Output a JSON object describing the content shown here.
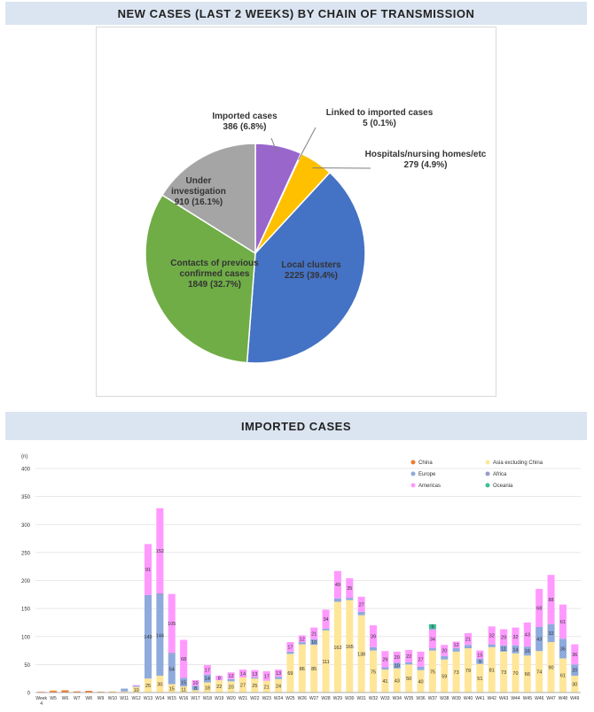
{
  "pie_section": {
    "title": "NEW CASES (LAST 2 WEEKS) BY CHAIN OF TRANSMISSION"
  },
  "bar_section": {
    "title": "IMPORTED CASES"
  },
  "chart_data": [
    {
      "type": "pie",
      "title": "NEW CASES (LAST 2 WEEKS) BY CHAIN OF TRANSMISSION",
      "slices": [
        {
          "label": "Imported cases",
          "value": 386,
          "text": "386 (6.8%)",
          "color": "#9966cc"
        },
        {
          "label": "Linked to imported cases",
          "value": 5,
          "text": "5 (0.1%)",
          "color": "#7f7f7f"
        },
        {
          "label": "Hospitals/nursing homes/etc",
          "value": 279,
          "text": "279 (4.9%)",
          "color": "#ffc000"
        },
        {
          "label": "Local clusters",
          "value": 2225,
          "text": "2225 (39.4%)",
          "color": "#4472c4"
        },
        {
          "label": "Contacts of previous confirmed cases",
          "value": 1849,
          "text": "1849 (32.7%)",
          "color": "#70ad47"
        },
        {
          "label": "Under investigation",
          "value": 910,
          "text": "910 (16.1%)",
          "color": "#a5a5a5"
        }
      ]
    },
    {
      "type": "bar",
      "stacked": true,
      "title": "IMPORTED CASES",
      "ylabel": "(n)",
      "ylim": [
        0,
        400
      ],
      "yticks": [
        0,
        50,
        100,
        150,
        200,
        250,
        300,
        350,
        400
      ],
      "categories": [
        "Week 4",
        "W5",
        "W6",
        "W7",
        "W8",
        "W9",
        "W10",
        "W11",
        "W12",
        "W13",
        "W14",
        "W15",
        "W16",
        "W17",
        "W18",
        "W19",
        "W20",
        "W21",
        "W22",
        "W23",
        "W24",
        "W25",
        "W26",
        "W27",
        "W28",
        "W29",
        "W30",
        "W31",
        "W32",
        "W33",
        "W34",
        "W35",
        "W36",
        "W37",
        "W38",
        "W39",
        "W40",
        "W41",
        "W42",
        "W43",
        "W44",
        "W45",
        "W46",
        "W47",
        "W48",
        "W49"
      ],
      "legend": [
        "China",
        "Asia excluding China",
        "Europe",
        "Africa",
        "Americas",
        "Oceania"
      ],
      "legend_position": "top-right",
      "series": [
        {
          "name": "China",
          "color": "#ed7d31",
          "values": [
            1,
            3,
            4,
            2,
            3,
            1,
            1,
            0,
            0,
            0,
            0,
            0,
            0,
            0,
            0,
            0,
            0,
            0,
            0,
            0,
            0,
            0,
            0,
            0,
            0,
            0,
            0,
            0,
            0,
            0,
            0,
            0,
            0,
            0,
            0,
            0,
            0,
            0,
            0,
            0,
            0,
            0,
            0,
            0,
            0,
            0
          ]
        },
        {
          "name": "Asia excluding China",
          "color": "#ffe699",
          "values": [
            0,
            1,
            0,
            0,
            0,
            0,
            1,
            2,
            10,
            25,
            30,
            15,
            11,
            4,
            18,
            22,
            20,
            27,
            25,
            21,
            24,
            69,
            86,
            85,
            111,
            162,
            165,
            138,
            75,
            41,
            43,
            50,
            40,
            75,
            59,
            73,
            79,
            51,
            81,
            73,
            70,
            66,
            74,
            90,
            61,
            30
          ]
        },
        {
          "name": "Europe",
          "color": "#8faadc",
          "values": [
            0,
            0,
            0,
            0,
            0,
            0,
            0,
            5,
            2,
            149,
            144,
            54,
            15,
            8,
            14,
            0,
            4,
            0,
            2,
            0,
            4,
            4,
            4,
            10,
            3,
            6,
            4,
            6,
            6,
            4,
            10,
            4,
            6,
            4,
            6,
            6,
            6,
            9,
            5,
            11,
            14,
            16,
            43,
            32,
            35,
            20
          ]
        },
        {
          "name": "Africa",
          "color": "#9999cc",
          "values": [
            0,
            0,
            0,
            0,
            0,
            0,
            0,
            0,
            0,
            0,
            3,
            2,
            0,
            0,
            0,
            0,
            0,
            0,
            0,
            0,
            0,
            0,
            0,
            0,
            0,
            0,
            0,
            0,
            0,
            0,
            0,
            0,
            0,
            0,
            0,
            0,
            0,
            0,
            0,
            0,
            0,
            0,
            0,
            0,
            0,
            0
          ]
        },
        {
          "name": "Americas",
          "color": "#ff99ff",
          "values": [
            0,
            0,
            0,
            0,
            0,
            0,
            0,
            0,
            1,
            91,
            152,
            105,
            68,
            10,
            17,
            8,
            12,
            14,
            13,
            17,
            13,
            17,
            12,
            21,
            34,
            49,
            35,
            27,
            39,
            29,
            20,
            22,
            27,
            34,
            20,
            12,
            21,
            15,
            32,
            29,
            32,
            43,
            68,
            88,
            61,
            36
          ]
        },
        {
          "name": "Oceania",
          "color": "#3bbf9a",
          "values": [
            0,
            0,
            0,
            0,
            0,
            0,
            0,
            0,
            0,
            0,
            0,
            0,
            0,
            0,
            0,
            0,
            0,
            0,
            0,
            0,
            0,
            0,
            0,
            0,
            0,
            0,
            0,
            0,
            0,
            0,
            0,
            0,
            0,
            9,
            0,
            0,
            0,
            0,
            0,
            0,
            0,
            0,
            0,
            0,
            0,
            0
          ]
        }
      ]
    }
  ]
}
